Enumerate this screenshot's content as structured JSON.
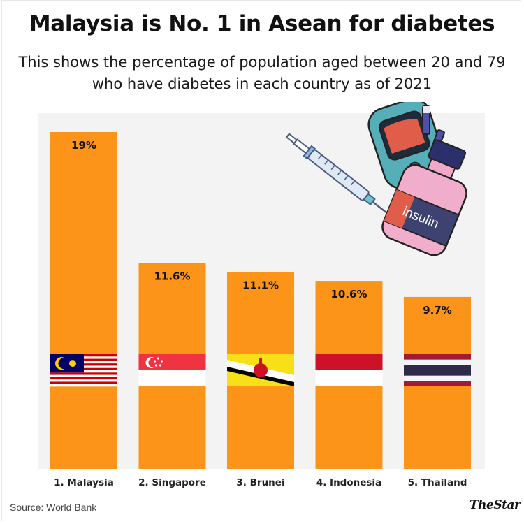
{
  "header": {
    "title": "Malaysia is No. 1 in Asean for diabetes",
    "subtitle": "This shows the percentage of population aged between 20 and 79 who have diabetes in each country as of 2021"
  },
  "footer": {
    "source": "Source: World Bank",
    "brand": "TheStar"
  },
  "illustration": {
    "label": "insulin",
    "icons": [
      "syringe-icon",
      "glucose-meter-icon",
      "test-strip-icon",
      "insulin-vial-icon"
    ]
  },
  "colors": {
    "bar": "#fb9419",
    "plot_background": "#f3f3f3",
    "text": "#111111"
  },
  "chart_data": {
    "type": "bar",
    "title": "Malaysia is No. 1 in Asean for diabetes",
    "subtitle": "This shows the percentage of population aged between 20 and 79 who have diabetes in each country as of 2021",
    "categories": [
      "1. Malaysia",
      "2. Singapore",
      "3. Brunei",
      "4. Indonesia",
      "5. Thailand"
    ],
    "values": [
      19,
      11.6,
      11.1,
      10.6,
      9.7
    ],
    "data_labels": [
      "19%",
      "11.6%",
      "11.1%",
      "10.6%",
      "9.7%"
    ],
    "flags": [
      "malaysia-flag",
      "singapore-flag",
      "brunei-flag",
      "indonesia-flag",
      "thailand-flag"
    ],
    "unit": "%",
    "ylim": [
      0,
      19
    ],
    "grid": false,
    "legend": "none"
  }
}
